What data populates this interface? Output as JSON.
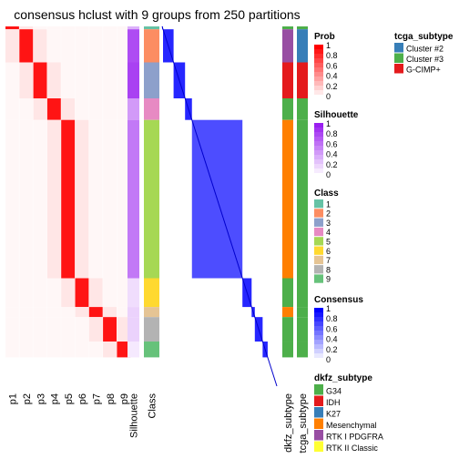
{
  "chart_data": {
    "type": "heatmap",
    "title": "consensus hclust with 9 groups from 250 partitions",
    "n_samples": 250,
    "partition_columns": [
      "p1",
      "p2",
      "p3",
      "p4",
      "p5",
      "p6",
      "p7",
      "p8",
      "p9"
    ],
    "annotation_column_labels": [
      "Silhouette",
      "Class",
      "dkfz_subtype",
      "tcga_subtype"
    ],
    "class_groups": [
      {
        "class": "1",
        "n": 2,
        "p": 1
      },
      {
        "class": "2",
        "n": 23,
        "p": 2
      },
      {
        "class": "3",
        "n": 25,
        "p": 3
      },
      {
        "class": "4",
        "n": 15,
        "p": 4
      },
      {
        "class": "5",
        "n": 110,
        "p": 5
      },
      {
        "class": "6",
        "n": 20,
        "p": 6
      },
      {
        "class": "7",
        "n": 7,
        "p": 7
      },
      {
        "class": "8",
        "n": 17,
        "p": 8
      },
      {
        "class": "9",
        "n": 11,
        "p": 9
      }
    ],
    "legends": {
      "prob": {
        "title": "Prob",
        "ticks": [
          "1",
          "0.8",
          "0.6",
          "0.4",
          "0.2",
          "0"
        ],
        "low": "#ffffff",
        "high": "#ff0000"
      },
      "silhouette": {
        "title": "Silhouette",
        "ticks": [
          "1",
          "0.8",
          "0.6",
          "0.4",
          "0.2",
          "0"
        ],
        "low": "#ffffff",
        "high": "#9a1ff0"
      },
      "class": {
        "title": "Class",
        "labels": [
          "1",
          "2",
          "3",
          "4",
          "5",
          "6",
          "7",
          "8",
          "9"
        ],
        "colors": [
          "#66c2a5",
          "#fc8d62",
          "#8da0cb",
          "#e78ac3",
          "#a6d854",
          "#ffd92f",
          "#e5c494",
          "#b3b3b3",
          "#66c27a"
        ]
      },
      "consensus": {
        "title": "Consensus",
        "ticks": [
          "1",
          "0.8",
          "0.6",
          "0.4",
          "0.2",
          "0"
        ],
        "low": "#ffffff",
        "high": "#0000ff"
      },
      "dkfz_subtype": {
        "title": "dkfz_subtype",
        "labels": [
          "G34",
          "IDH",
          "K27",
          "Mesenchymal",
          "RTK I PDGFRA",
          "RTK II Classic"
        ],
        "colors": [
          "#4daf4a",
          "#e41a1c",
          "#377eb8",
          "#ff7f00",
          "#984ea3",
          "#ffff33"
        ]
      },
      "tcga_subtype": {
        "title": "tcga_subtype",
        "labels": [
          "Cluster #2",
          "Cluster #3",
          "G-CIMP+"
        ],
        "colors": [
          "#377eb8",
          "#4daf4a",
          "#e41a1c"
        ]
      }
    }
  }
}
